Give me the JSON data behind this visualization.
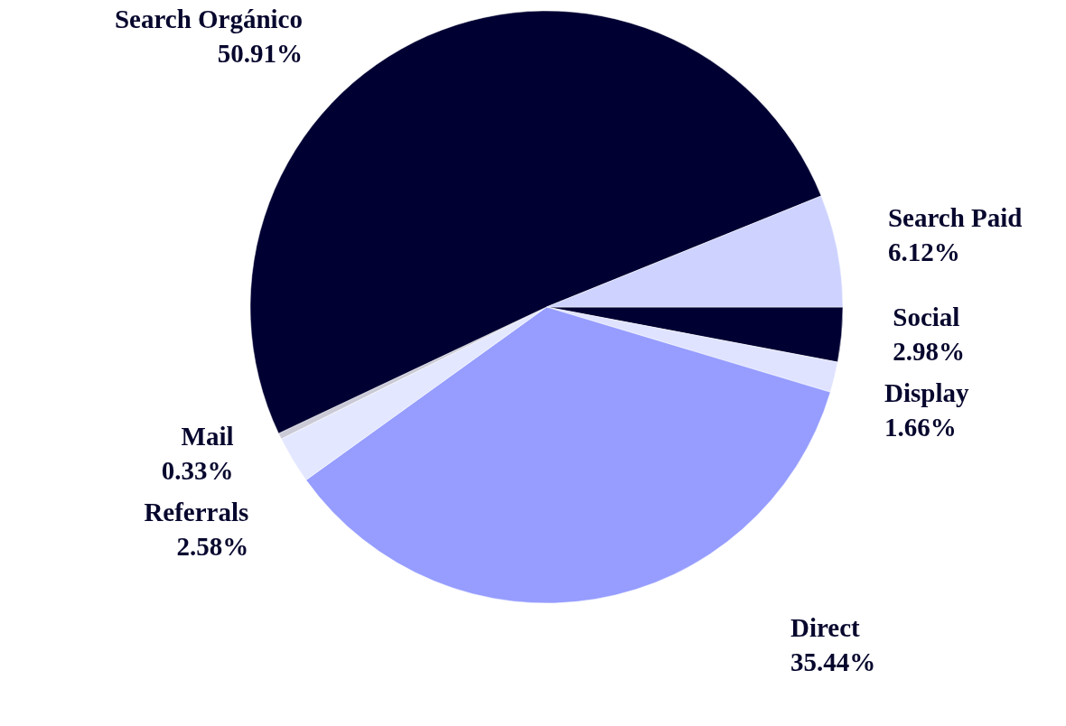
{
  "chart_data": {
    "type": "pie",
    "categories": [
      "Social",
      "Display",
      "Direct",
      "Referrals",
      "Mail",
      "Search Orgánico",
      "Search Paid"
    ],
    "values": [
      2.98,
      1.66,
      35.44,
      2.58,
      0.33,
      50.91,
      6.12
    ],
    "colors": [
      "#000033",
      "#dfe3ff",
      "#969dff",
      "#e3e7ff",
      "#c9cad6",
      "#000033",
      "#cdd2ff"
    ],
    "value_labels": [
      "2.98%",
      "1.66%",
      "35.44%",
      "2.58%",
      "0.33%",
      "50.91%",
      "6.12%"
    ]
  }
}
